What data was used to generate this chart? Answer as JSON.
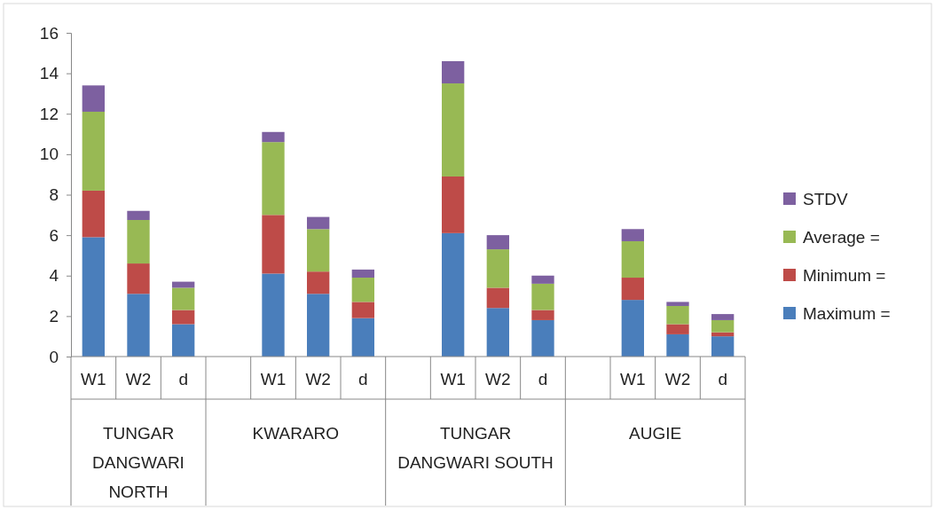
{
  "chart_data": {
    "type": "bar",
    "stacked": true,
    "categories": [
      "W1",
      "W2",
      "d",
      null,
      "W1",
      "W2",
      "d",
      null,
      "W1",
      "W2",
      "d",
      null,
      "W1",
      "W2",
      "d"
    ],
    "series": [
      {
        "name": "Maximum =",
        "color": "#4a7ebb",
        "values": [
          5.9,
          3.1,
          1.6,
          null,
          4.1,
          3.1,
          1.9,
          null,
          6.1,
          2.4,
          1.8,
          null,
          2.8,
          1.1,
          1.0
        ]
      },
      {
        "name": "Minimum =",
        "color": "#be4b48",
        "values": [
          2.3,
          1.5,
          0.7,
          null,
          2.9,
          1.1,
          0.8,
          null,
          2.8,
          1.0,
          0.5,
          null,
          1.1,
          0.5,
          0.2
        ]
      },
      {
        "name": "Average =",
        "color": "#98b954",
        "values": [
          3.9,
          2.15,
          1.1,
          null,
          3.6,
          2.1,
          1.2,
          null,
          4.6,
          1.9,
          1.3,
          null,
          1.8,
          0.9,
          0.6
        ]
      },
      {
        "name": "STDV",
        "color": "#7d60a0",
        "values": [
          1.3,
          0.45,
          0.3,
          null,
          0.5,
          0.6,
          0.4,
          null,
          1.1,
          0.7,
          0.4,
          null,
          0.6,
          0.2,
          0.3
        ]
      }
    ],
    "annotations": [
      "TUNGAR DANGWARI NORTH",
      "KWARARO",
      "TUNGAR DANGWARI SOUTH",
      "AUGIE"
    ],
    "ylim": [
      0,
      16
    ],
    "yticks": [
      0,
      2,
      4,
      6,
      8,
      10,
      12,
      14,
      16
    ],
    "grid": false,
    "legend": "right"
  }
}
